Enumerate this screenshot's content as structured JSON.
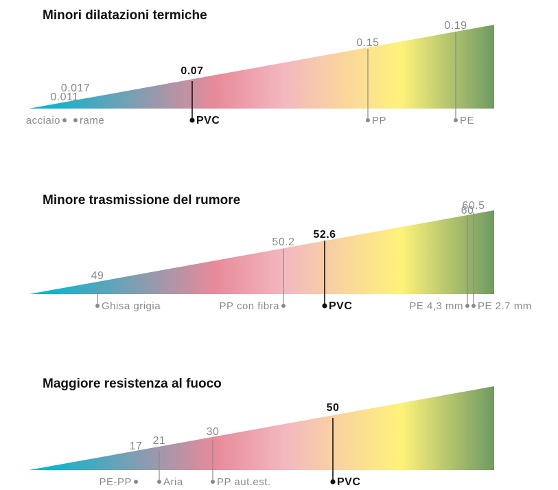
{
  "chart_data": [
    {
      "type": "bar",
      "title": "Minori dilatazioni termiche",
      "points": [
        {
          "label": "acciaio",
          "value": "0.011",
          "highlight": false
        },
        {
          "label": "rame",
          "value": "0.017",
          "highlight": false
        },
        {
          "label": "PVC",
          "value": "0.07",
          "highlight": true
        },
        {
          "label": "PP",
          "value": "0.15",
          "highlight": false
        },
        {
          "label": "PE",
          "value": "0.19",
          "highlight": false
        }
      ]
    },
    {
      "type": "bar",
      "title": "Minore trasmissione del rumore",
      "points": [
        {
          "label": "Ghisa grigia",
          "value": "49",
          "highlight": false
        },
        {
          "label": "PP con fibra",
          "value": "50.2",
          "highlight": false
        },
        {
          "label": "PVC",
          "value": "52.6",
          "highlight": true
        },
        {
          "label": "PE 4,3 mm",
          "value": "60",
          "highlight": false
        },
        {
          "label": "PE 2.7 mm",
          "value": "60.5",
          "highlight": false
        }
      ]
    },
    {
      "type": "bar",
      "title": "Maggiore resistenza al fuoco",
      "points": [
        {
          "label": "PE-PP",
          "value": "17",
          "highlight": false
        },
        {
          "label": "Aria",
          "value": "21",
          "highlight": false
        },
        {
          "label": "PP aut.est.",
          "value": "30",
          "highlight": false
        },
        {
          "label": "PVC",
          "value": "50",
          "highlight": true
        }
      ]
    }
  ],
  "colors": {
    "gradient": [
      "#11b3cc",
      "#e88a9a",
      "#f3b8c0",
      "#fff27a",
      "#6f9a62"
    ],
    "highlight": "#111111",
    "muted": "#8a8a8a"
  }
}
